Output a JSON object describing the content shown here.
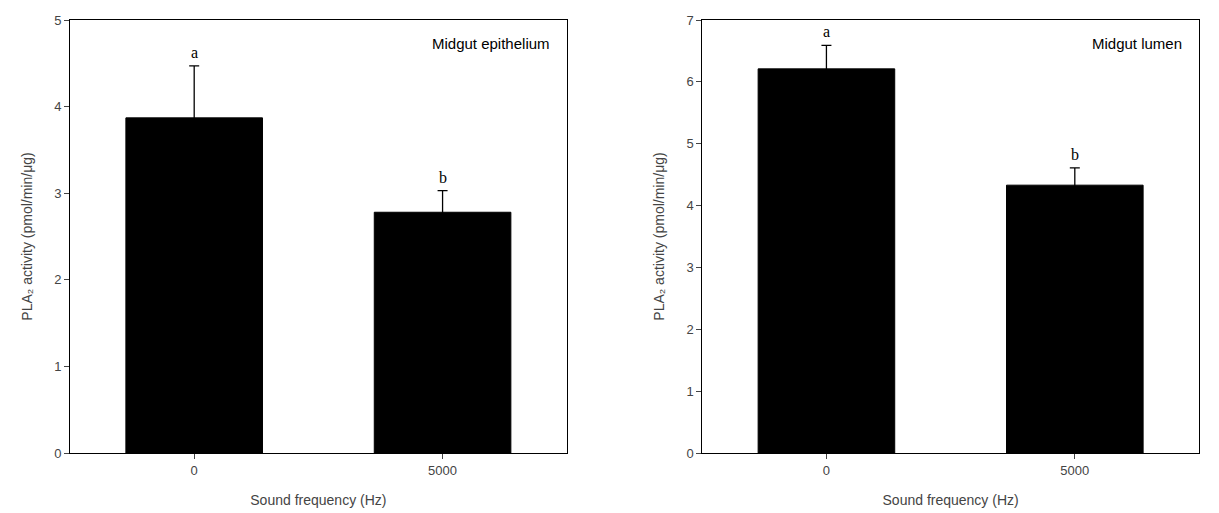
{
  "chart_data": [
    {
      "type": "bar",
      "title": "Midgut epithelium",
      "categories": [
        "0",
        "5000"
      ],
      "values": [
        3.87,
        2.78
      ],
      "errors": [
        0.6,
        0.25
      ],
      "annotations": [
        "a",
        "b"
      ],
      "color": "#000000",
      "ylim": [
        0,
        5
      ],
      "yticks": [
        0,
        1,
        2,
        3,
        4,
        5
      ],
      "ylabel": "PLA₂ activity (pmol/min/μg)",
      "xlabel": "Sound frequency (Hz)",
      "grid": false
    },
    {
      "type": "bar",
      "title": "Midgut lumen",
      "categories": [
        "0",
        "5000"
      ],
      "values": [
        6.21,
        4.33
      ],
      "errors": [
        0.38,
        0.28
      ],
      "annotations": [
        "a",
        "b"
      ],
      "color": "#000000",
      "ylim": [
        0,
        7
      ],
      "yticks": [
        0,
        1,
        2,
        3,
        4,
        5,
        6,
        7
      ],
      "ylabel": "PLA₂ activity (pmol/min/μg)",
      "xlabel": "Sound frequency (Hz)",
      "grid": false
    }
  ]
}
